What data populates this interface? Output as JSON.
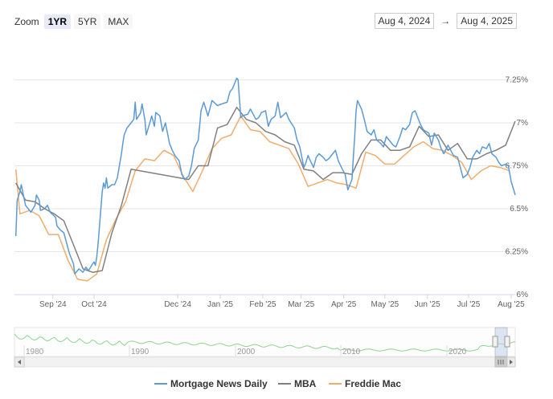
{
  "zoom": {
    "label": "Zoom",
    "buttons": [
      "1YR",
      "5YR",
      "MAX"
    ],
    "active": "1YR"
  },
  "range": {
    "from": "Aug 4, 2024",
    "arrow": "→",
    "to": "Aug 4, 2025"
  },
  "navigator": {
    "years": [
      "1980",
      "1990",
      "2000",
      "2010",
      "2020"
    ]
  },
  "colors": {
    "mnd": "#5b9bd5",
    "mba": "#808080",
    "freddie": "#f0ad6b",
    "nav": "#8fd48f"
  },
  "chart_data": {
    "type": "line",
    "x_ticks": [
      "Sep '24",
      "Oct '24",
      "Dec '24",
      "Jan '25",
      "Feb '25",
      "Mar '25",
      "Apr '25",
      "May '25",
      "Jun '25",
      "Jul '25",
      "Aug '25"
    ],
    "y_ticks": [
      "6%",
      "6.25%",
      "6.5%",
      "6.75%",
      "7%",
      "7.25%"
    ],
    "ylim": [
      6.0,
      7.5
    ],
    "legend_position": "bottom-center",
    "series": [
      {
        "name": "Mortgage News Daily",
        "color": "#5b9bd5",
        "values": [
          [
            "2024-08-05",
            6.34
          ],
          [
            "2024-08-06",
            6.55
          ],
          [
            "2024-08-08",
            6.6
          ],
          [
            "2024-08-09",
            6.64
          ],
          [
            "2024-08-12",
            6.52
          ],
          [
            "2024-08-14",
            6.5
          ],
          [
            "2024-08-16",
            6.48
          ],
          [
            "2024-08-19",
            6.52
          ],
          [
            "2024-08-20",
            6.58
          ],
          [
            "2024-08-22",
            6.55
          ],
          [
            "2024-08-23",
            6.49
          ],
          [
            "2024-08-26",
            6.5
          ],
          [
            "2024-08-28",
            6.52
          ],
          [
            "2024-08-30",
            6.48
          ],
          [
            "2024-09-03",
            6.45
          ],
          [
            "2024-09-04",
            6.4
          ],
          [
            "2024-09-06",
            6.38
          ],
          [
            "2024-09-09",
            6.36
          ],
          [
            "2024-09-11",
            6.3
          ],
          [
            "2024-09-13",
            6.24
          ],
          [
            "2024-09-16",
            6.18
          ],
          [
            "2024-09-17",
            6.12
          ],
          [
            "2024-09-19",
            6.14
          ],
          [
            "2024-09-20",
            6.15
          ],
          [
            "2024-09-23",
            6.13
          ],
          [
            "2024-09-25",
            6.16
          ],
          [
            "2024-09-27",
            6.14
          ],
          [
            "2024-09-30",
            6.18
          ],
          [
            "2024-10-01",
            6.19
          ],
          [
            "2024-10-02",
            6.17
          ],
          [
            "2024-10-03",
            6.22
          ],
          [
            "2024-10-04",
            6.3
          ],
          [
            "2024-10-07",
            6.6
          ],
          [
            "2024-10-08",
            6.65
          ],
          [
            "2024-10-09",
            6.62
          ],
          [
            "2024-10-10",
            6.68
          ],
          [
            "2024-10-11",
            6.62
          ],
          [
            "2024-10-14",
            6.64
          ],
          [
            "2024-10-16",
            6.64
          ],
          [
            "2024-10-18",
            6.68
          ],
          [
            "2024-10-21",
            6.82
          ],
          [
            "2024-10-22",
            6.88
          ],
          [
            "2024-10-23",
            6.93
          ],
          [
            "2024-10-25",
            6.97
          ],
          [
            "2024-10-28",
            7.0
          ],
          [
            "2024-10-30",
            7.02
          ],
          [
            "2024-10-31",
            7.12
          ],
          [
            "2024-11-01",
            7.02
          ],
          [
            "2024-11-04",
            7.06
          ],
          [
            "2024-11-05",
            7.11
          ],
          [
            "2024-11-07",
            7.02
          ],
          [
            "2024-11-08",
            6.93
          ],
          [
            "2024-11-11",
            7.01
          ],
          [
            "2024-11-12",
            7.04
          ],
          [
            "2024-11-14",
            6.98
          ],
          [
            "2024-11-15",
            7.06
          ],
          [
            "2024-11-18",
            7.04
          ],
          [
            "2024-11-20",
            6.95
          ],
          [
            "2024-11-22",
            7.0
          ],
          [
            "2024-11-25",
            6.88
          ],
          [
            "2024-11-27",
            6.84
          ],
          [
            "2024-11-29",
            6.81
          ],
          [
            "2024-12-02",
            6.78
          ],
          [
            "2024-12-04",
            6.7
          ],
          [
            "2024-12-06",
            6.67
          ],
          [
            "2024-12-09",
            6.69
          ],
          [
            "2024-12-11",
            6.75
          ],
          [
            "2024-12-13",
            6.85
          ],
          [
            "2024-12-16",
            6.9
          ],
          [
            "2024-12-18",
            7.07
          ],
          [
            "2024-12-20",
            7.12
          ],
          [
            "2024-12-23",
            7.04
          ],
          [
            "2024-12-26",
            7.13
          ],
          [
            "2024-12-30",
            7.1
          ],
          [
            "2025-01-02",
            7.11
          ],
          [
            "2025-01-06",
            7.12
          ],
          [
            "2025-01-08",
            7.18
          ],
          [
            "2025-01-10",
            7.2
          ],
          [
            "2025-01-13",
            7.26
          ],
          [
            "2025-01-14",
            7.25
          ],
          [
            "2025-01-16",
            7.03
          ],
          [
            "2025-01-17",
            7.04
          ],
          [
            "2025-01-21",
            7.05
          ],
          [
            "2025-01-23",
            7.08
          ],
          [
            "2025-01-27",
            7.02
          ],
          [
            "2025-01-29",
            7.03
          ],
          [
            "2025-01-31",
            7.06
          ],
          [
            "2025-02-03",
            7.07
          ],
          [
            "2025-02-05",
            6.98
          ],
          [
            "2025-02-07",
            7.02
          ],
          [
            "2025-02-10",
            7.04
          ],
          [
            "2025-02-12",
            7.12
          ],
          [
            "2025-02-14",
            7.03
          ],
          [
            "2025-02-18",
            7.06
          ],
          [
            "2025-02-20",
            7.02
          ],
          [
            "2025-02-24",
            6.97
          ],
          [
            "2025-02-26",
            6.9
          ],
          [
            "2025-02-28",
            6.86
          ],
          [
            "2025-03-03",
            6.74
          ],
          [
            "2025-03-04",
            6.76
          ],
          [
            "2025-03-06",
            6.81
          ],
          [
            "2025-03-07",
            6.79
          ],
          [
            "2025-03-10",
            6.74
          ],
          [
            "2025-03-12",
            6.8
          ],
          [
            "2025-03-14",
            6.82
          ],
          [
            "2025-03-17",
            6.8
          ],
          [
            "2025-03-19",
            6.78
          ],
          [
            "2025-03-21",
            6.79
          ],
          [
            "2025-03-24",
            6.82
          ],
          [
            "2025-03-26",
            6.84
          ],
          [
            "2025-03-28",
            6.78
          ],
          [
            "2025-03-31",
            6.73
          ],
          [
            "2025-04-02",
            6.7
          ],
          [
            "2025-04-04",
            6.61
          ],
          [
            "2025-04-07",
            6.67
          ],
          [
            "2025-04-08",
            6.8
          ],
          [
            "2025-04-09",
            6.92
          ],
          [
            "2025-04-10",
            7.07
          ],
          [
            "2025-04-11",
            7.13
          ],
          [
            "2025-04-14",
            7.08
          ],
          [
            "2025-04-16",
            7.02
          ],
          [
            "2025-04-18",
            6.95
          ],
          [
            "2025-04-21",
            6.93
          ],
          [
            "2025-04-23",
            6.96
          ],
          [
            "2025-04-25",
            6.9
          ],
          [
            "2025-04-28",
            6.88
          ],
          [
            "2025-04-30",
            6.86
          ],
          [
            "2025-05-02",
            6.92
          ],
          [
            "2025-05-05",
            6.89
          ],
          [
            "2025-05-07",
            6.87
          ],
          [
            "2025-05-09",
            6.86
          ],
          [
            "2025-05-12",
            6.92
          ],
          [
            "2025-05-14",
            6.97
          ],
          [
            "2025-05-16",
            6.96
          ],
          [
            "2025-05-19",
            6.99
          ],
          [
            "2025-05-21",
            7.06
          ],
          [
            "2025-05-23",
            7.07
          ],
          [
            "2025-05-27",
            6.99
          ],
          [
            "2025-05-29",
            6.96
          ],
          [
            "2025-06-02",
            6.94
          ],
          [
            "2025-06-04",
            6.87
          ],
          [
            "2025-06-06",
            6.94
          ],
          [
            "2025-06-09",
            6.9
          ],
          [
            "2025-06-11",
            6.85
          ],
          [
            "2025-06-13",
            6.82
          ],
          [
            "2025-06-16",
            6.87
          ],
          [
            "2025-06-18",
            6.84
          ],
          [
            "2025-06-20",
            6.81
          ],
          [
            "2025-06-23",
            6.8
          ],
          [
            "2025-06-25",
            6.74
          ],
          [
            "2025-06-27",
            6.68
          ],
          [
            "2025-06-30",
            6.7
          ],
          [
            "2025-07-02",
            6.74
          ],
          [
            "2025-07-04",
            6.8
          ],
          [
            "2025-07-07",
            6.84
          ],
          [
            "2025-07-09",
            6.82
          ],
          [
            "2025-07-11",
            6.86
          ],
          [
            "2025-07-14",
            6.85
          ],
          [
            "2025-07-16",
            6.88
          ],
          [
            "2025-07-18",
            6.82
          ],
          [
            "2025-07-21",
            6.8
          ],
          [
            "2025-07-23",
            6.77
          ],
          [
            "2025-07-25",
            6.75
          ],
          [
            "2025-07-28",
            6.76
          ],
          [
            "2025-07-30",
            6.75
          ],
          [
            "2025-08-01",
            6.66
          ],
          [
            "2025-08-04",
            6.58
          ]
        ]
      },
      {
        "name": "MBA",
        "color": "#808080",
        "values": [
          [
            "2024-08-05",
            6.65
          ],
          [
            "2024-08-12",
            6.55
          ],
          [
            "2024-08-19",
            6.54
          ],
          [
            "2024-08-26",
            6.5
          ],
          [
            "2024-09-02",
            6.47
          ],
          [
            "2024-09-09",
            6.43
          ],
          [
            "2024-09-16",
            6.29
          ],
          [
            "2024-09-23",
            6.15
          ],
          [
            "2024-09-30",
            6.13
          ],
          [
            "2024-10-07",
            6.14
          ],
          [
            "2024-10-14",
            6.36
          ],
          [
            "2024-10-21",
            6.52
          ],
          [
            "2024-10-28",
            6.73
          ],
          [
            "2024-12-09",
            6.67
          ],
          [
            "2024-12-16",
            6.75
          ],
          [
            "2024-12-23",
            6.75
          ],
          [
            "2024-12-30",
            6.97
          ],
          [
            "2025-01-06",
            6.99
          ],
          [
            "2025-01-13",
            7.09
          ],
          [
            "2025-01-20",
            7.02
          ],
          [
            "2025-01-27",
            7.0
          ],
          [
            "2025-02-03",
            6.95
          ],
          [
            "2025-02-10",
            6.93
          ],
          [
            "2025-02-17",
            6.89
          ],
          [
            "2025-02-24",
            6.87
          ],
          [
            "2025-03-03",
            6.73
          ],
          [
            "2025-03-10",
            6.72
          ],
          [
            "2025-03-17",
            6.67
          ],
          [
            "2025-03-24",
            6.71
          ],
          [
            "2025-03-31",
            6.71
          ],
          [
            "2025-04-07",
            6.7
          ],
          [
            "2025-04-14",
            6.82
          ],
          [
            "2025-04-21",
            6.9
          ],
          [
            "2025-04-28",
            6.9
          ],
          [
            "2025-05-05",
            6.84
          ],
          [
            "2025-05-12",
            6.84
          ],
          [
            "2025-05-19",
            6.86
          ],
          [
            "2025-05-26",
            6.98
          ],
          [
            "2025-06-02",
            6.92
          ],
          [
            "2025-06-09",
            6.93
          ],
          [
            "2025-06-16",
            6.84
          ],
          [
            "2025-06-23",
            6.88
          ],
          [
            "2025-06-30",
            6.79
          ],
          [
            "2025-07-07",
            6.79
          ],
          [
            "2025-07-14",
            6.82
          ],
          [
            "2025-07-21",
            6.84
          ],
          [
            "2025-07-28",
            6.87
          ],
          [
            "2025-08-04",
            7.01
          ]
        ]
      },
      {
        "name": "Freddie Mac",
        "color": "#f0ad6b",
        "values": [
          [
            "2024-08-05",
            6.73
          ],
          [
            "2024-08-08",
            6.47
          ],
          [
            "2024-08-15",
            6.49
          ],
          [
            "2024-08-22",
            6.46
          ],
          [
            "2024-08-29",
            6.35
          ],
          [
            "2024-09-05",
            6.35
          ],
          [
            "2024-09-12",
            6.2
          ],
          [
            "2024-09-19",
            6.09
          ],
          [
            "2024-09-26",
            6.08
          ],
          [
            "2024-10-03",
            6.12
          ],
          [
            "2024-10-10",
            6.32
          ],
          [
            "2024-10-17",
            6.44
          ],
          [
            "2024-10-24",
            6.54
          ],
          [
            "2024-10-31",
            6.72
          ],
          [
            "2024-11-07",
            6.79
          ],
          [
            "2024-11-14",
            6.78
          ],
          [
            "2024-11-21",
            6.84
          ],
          [
            "2024-11-28",
            6.81
          ],
          [
            "2024-12-05",
            6.69
          ],
          [
            "2024-12-12",
            6.6
          ],
          [
            "2024-12-19",
            6.72
          ],
          [
            "2024-12-26",
            6.85
          ],
          [
            "2025-01-02",
            6.91
          ],
          [
            "2025-01-09",
            6.93
          ],
          [
            "2025-01-16",
            7.04
          ],
          [
            "2025-01-23",
            6.96
          ],
          [
            "2025-01-30",
            6.95
          ],
          [
            "2025-02-06",
            6.89
          ],
          [
            "2025-02-13",
            6.87
          ],
          [
            "2025-02-20",
            6.85
          ],
          [
            "2025-02-27",
            6.76
          ],
          [
            "2025-03-06",
            6.63
          ],
          [
            "2025-03-13",
            6.65
          ],
          [
            "2025-03-20",
            6.67
          ],
          [
            "2025-03-27",
            6.65
          ],
          [
            "2025-04-03",
            6.64
          ],
          [
            "2025-04-10",
            6.62
          ],
          [
            "2025-04-17",
            6.83
          ],
          [
            "2025-04-24",
            6.81
          ],
          [
            "2025-05-01",
            6.76
          ],
          [
            "2025-05-08",
            6.76
          ],
          [
            "2025-05-15",
            6.81
          ],
          [
            "2025-05-22",
            6.86
          ],
          [
            "2025-05-29",
            6.89
          ],
          [
            "2025-06-05",
            6.85
          ],
          [
            "2025-06-12",
            6.84
          ],
          [
            "2025-06-19",
            6.81
          ],
          [
            "2025-06-26",
            6.77
          ],
          [
            "2025-07-03",
            6.67
          ],
          [
            "2025-07-10",
            6.72
          ],
          [
            "2025-07-17",
            6.75
          ],
          [
            "2025-07-24",
            6.74
          ],
          [
            "2025-07-31",
            6.72
          ]
        ]
      }
    ]
  }
}
